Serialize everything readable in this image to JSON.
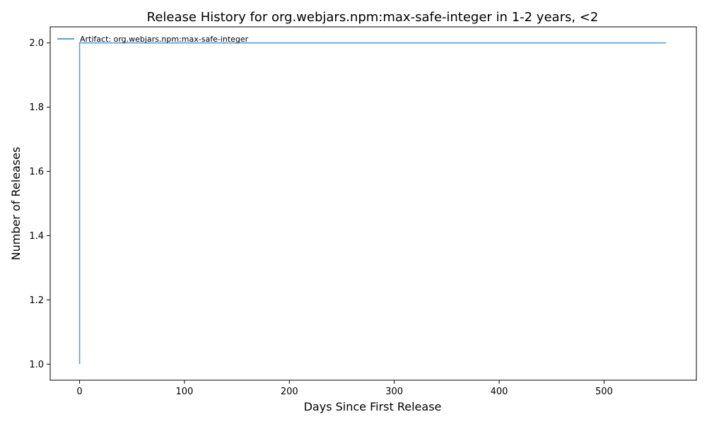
{
  "chart_data": {
    "type": "line",
    "title": "Release History for org.webjars.npm:max-safe-integer in 1-2 years, <2",
    "xlabel": "Days Since First Release",
    "ylabel": "Number of Releases",
    "xlim": [
      -28,
      588
    ],
    "ylim": [
      0.95,
      2.05
    ],
    "xticks": [
      0,
      100,
      200,
      300,
      400,
      500
    ],
    "yticks": [
      1.0,
      1.2,
      1.4,
      1.6,
      1.8,
      2.0
    ],
    "xtick_labels": [
      "0",
      "100",
      "200",
      "300",
      "400",
      "500"
    ],
    "ytick_labels": [
      "1.0",
      "1.2",
      "1.4",
      "1.6",
      "1.8",
      "2.0"
    ],
    "grid": false,
    "legend_position": "top-left",
    "series": [
      {
        "name": "Artifact: org.webjars.npm:max-safe-integer",
        "color": "#5a9fd0",
        "step": "post",
        "x": [
          0,
          0,
          559
        ],
        "y": [
          1,
          2,
          2
        ]
      }
    ]
  }
}
